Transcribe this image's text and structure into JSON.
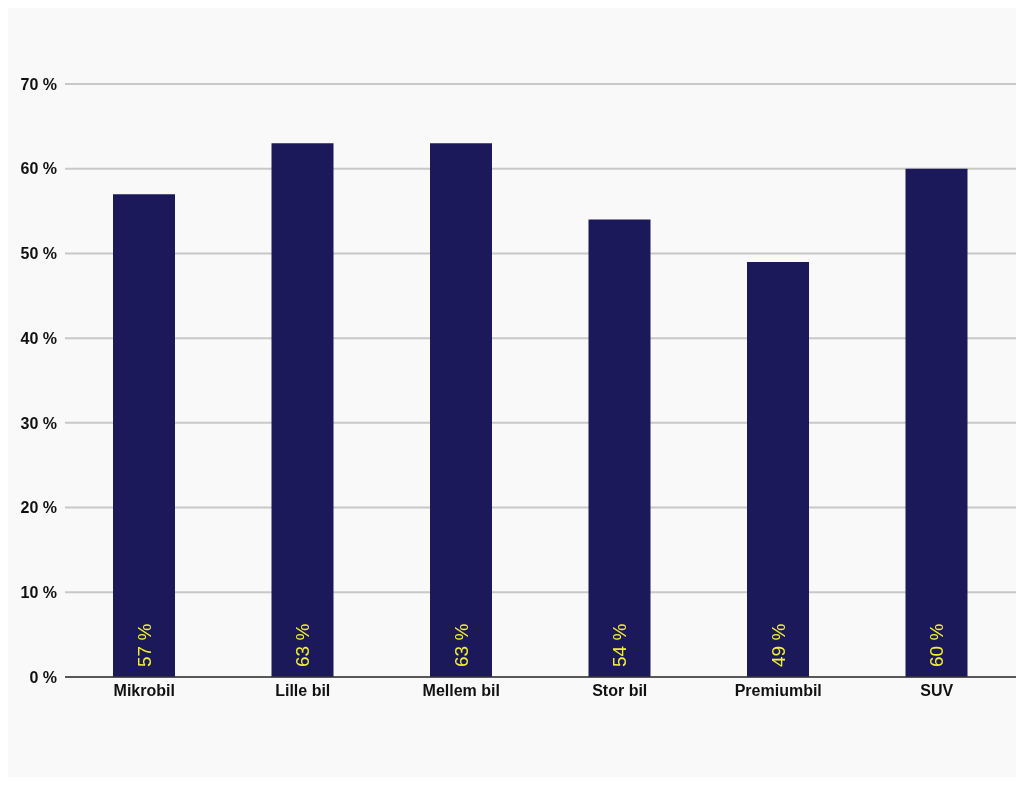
{
  "chart_data": {
    "type": "bar",
    "categories": [
      "Mikrobil",
      "Lille bil",
      "Mellem bil",
      "Stor bil",
      "Premiumbil",
      "SUV"
    ],
    "values": [
      57,
      63,
      63,
      54,
      49,
      60
    ],
    "color": "#1b1959",
    "value_labels": [
      "57 %",
      "63 %",
      "63 %",
      "54 %",
      "49 %",
      "60 %"
    ],
    "ylim": [
      0,
      70
    ],
    "yticks": [
      {
        "value": 0,
        "label": "0 %"
      },
      {
        "value": 10,
        "label": "10 %"
      },
      {
        "value": 20,
        "label": "20 %"
      },
      {
        "value": 30,
        "label": "30 %"
      },
      {
        "value": 40,
        "label": "40 %"
      },
      {
        "value": 50,
        "label": "50 %"
      },
      {
        "value": 60,
        "label": "60 %"
      },
      {
        "value": 70,
        "label": "70 %"
      }
    ],
    "grid": "y",
    "legend": false
  }
}
